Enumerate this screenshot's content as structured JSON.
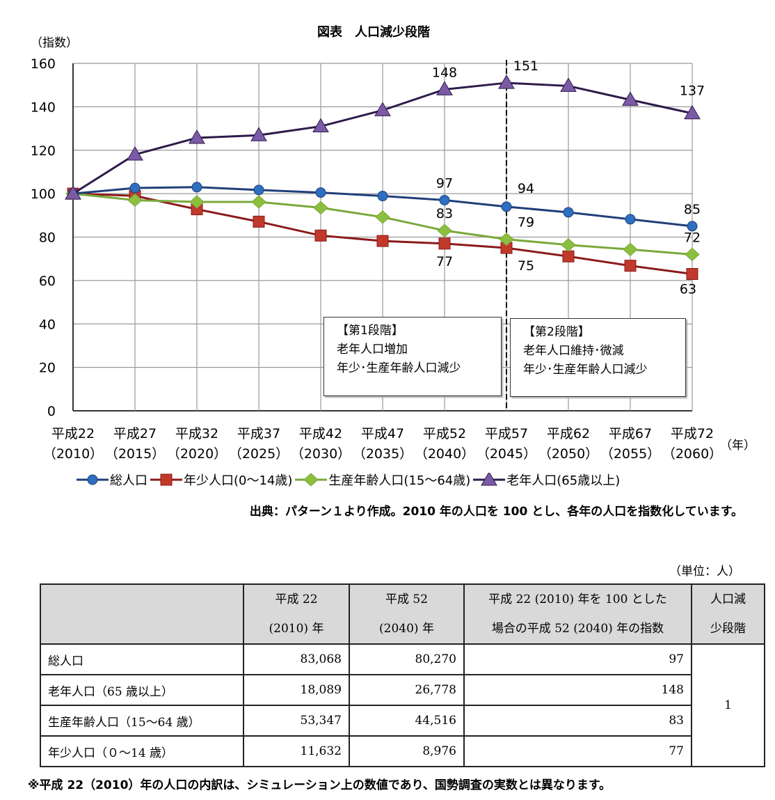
{
  "chart_data": {
    "type": "line",
    "title": "図表　人口減少段階",
    "ylabel": "（指数）",
    "xlabel": "（年）",
    "ylim": [
      0,
      160
    ],
    "yticks": [
      0,
      20,
      40,
      60,
      80,
      100,
      120,
      140,
      160
    ],
    "grid": true,
    "legend_position": "bottom",
    "categories": [
      {
        "era": "平成22",
        "year": "（2010）"
      },
      {
        "era": "平成27",
        "year": "（2015）"
      },
      {
        "era": "平成32",
        "year": "（2020）"
      },
      {
        "era": "平成37",
        "year": "（2025）"
      },
      {
        "era": "平成42",
        "year": "（2030）"
      },
      {
        "era": "平成47",
        "year": "（2035）"
      },
      {
        "era": "平成52",
        "year": "（2040）"
      },
      {
        "era": "平成57",
        "year": "（2045）"
      },
      {
        "era": "平成62",
        "year": "（2050）"
      },
      {
        "era": "平成67",
        "year": "（2055）"
      },
      {
        "era": "平成72",
        "year": "（2060）"
      }
    ],
    "series": [
      {
        "name": "総人口",
        "color": "#2e6fbf",
        "line": "#1f3f7a",
        "marker": "circle",
        "values": [
          100,
          102.6,
          103,
          101.7,
          100.5,
          98.9,
          97,
          94,
          91.4,
          88.2,
          85
        ]
      },
      {
        "name": "年少人口(0～14歳)",
        "color": "#c0392b",
        "line": "#8b1a1a",
        "marker": "square",
        "values": [
          100,
          99,
          92.8,
          87.1,
          80.7,
          78.2,
          77,
          75,
          71.1,
          66.8,
          63
        ]
      },
      {
        "name": "生産年齢人口(15～64歳)",
        "color": "#8cbf3f",
        "line": "#7aa83a",
        "marker": "diamond",
        "values": [
          100,
          97,
          96.2,
          96.2,
          93.5,
          89.2,
          83,
          79,
          76.4,
          74.3,
          72
        ]
      },
      {
        "name": "老年人口(65歳以上)",
        "color": "#7b5aa6",
        "line": "#2e1a4a",
        "marker": "triangle",
        "values": [
          100,
          118,
          125.7,
          126.9,
          131,
          138.4,
          148,
          151,
          149.6,
          143.2,
          137
        ]
      }
    ],
    "data_labels": [
      {
        "series": 3,
        "index": 6,
        "text": "148"
      },
      {
        "series": 3,
        "index": 7,
        "text": "151"
      },
      {
        "series": 3,
        "index": 10,
        "text": "137"
      },
      {
        "series": 0,
        "index": 6,
        "text": "97"
      },
      {
        "series": 0,
        "index": 7,
        "text": "94"
      },
      {
        "series": 0,
        "index": 10,
        "text": "85"
      },
      {
        "series": 2,
        "index": 6,
        "text": "83"
      },
      {
        "series": 2,
        "index": 7,
        "text": "79"
      },
      {
        "series": 2,
        "index": 10,
        "text": "72"
      },
      {
        "series": 1,
        "index": 6,
        "text": "77"
      },
      {
        "series": 1,
        "index": 7,
        "text": "75"
      },
      {
        "series": 1,
        "index": 10,
        "text": "63"
      }
    ],
    "divider_index": 7
  },
  "stages": [
    {
      "title": "【第1段階】",
      "line1": "老年人口増加",
      "line2": "年少･生産年齢人口減少"
    },
    {
      "title": "【第2段階】",
      "line1": "老年人口維持･微減",
      "line2": "年少･生産年齢人口減少"
    }
  ],
  "source_note": "出典：パターン１より作成。2010 年の人口を 100 とし、各年の人口を指数化しています。",
  "table": {
    "unit": "（単位：人）",
    "headers": [
      {
        "l1": "",
        "l2": ""
      },
      {
        "l1": "平成 22",
        "l2": "(2010) 年"
      },
      {
        "l1": "平成 52",
        "l2": "(2040) 年"
      },
      {
        "l1": "平成 22 (2010) 年を 100 とした",
        "l2": "場合の平成 52 (2040) 年の指数"
      },
      {
        "l1": "人口減",
        "l2": "少段階"
      }
    ],
    "rows": [
      {
        "label": "総人口",
        "v2010": "83,068",
        "v2040": "80,270",
        "index": "97"
      },
      {
        "label": "老年人口（65 歳以上）",
        "v2010": "18,089",
        "v2040": "26,778",
        "index": "148"
      },
      {
        "label": "生産年齢人口（15～64 歳）",
        "v2010": "53,347",
        "v2040": "44,516",
        "index": "83"
      },
      {
        "label": "年少人口（０～14 歳）",
        "v2010": "11,632",
        "v2040": "8,976",
        "index": "77"
      }
    ],
    "stage": "1"
  },
  "footnote": "※平成 22（2010）年の人口の内訳は、シミュレーション上の数値であり、国勢調査の実数とは異なります。"
}
